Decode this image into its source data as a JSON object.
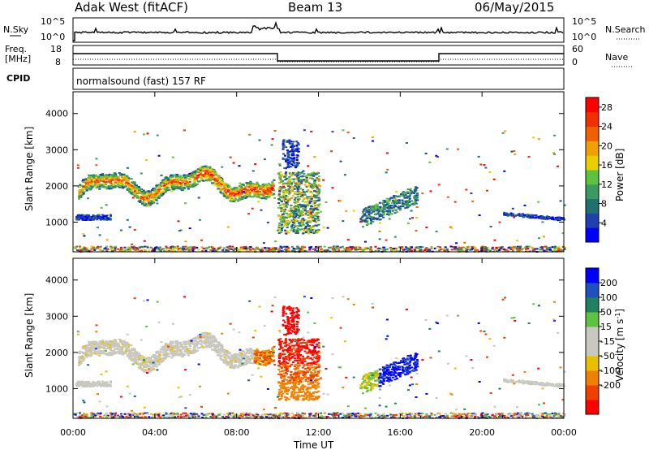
{
  "header": {
    "site": "Adak West (fitACF)",
    "beam": "Beam 13",
    "date": "06/May/2015"
  },
  "top_panel": {
    "left_label": "N.Sky",
    "right_label": "N.Search",
    "left_ticks": [
      "10^5",
      "10^0"
    ],
    "right_ticks": [
      "10^5",
      "10^0"
    ]
  },
  "freq_panel": {
    "left_label_1": "Freq.",
    "left_label_2": "[MHz]",
    "left_ticks": [
      "18",
      "8"
    ],
    "right_label": "Nave",
    "right_ticks": [
      "60",
      "0"
    ]
  },
  "cpid_panel": {
    "label": "CPID",
    "text": "normalsound (fast) 157 RF"
  },
  "colors": {
    "power": [
      "#0000ff",
      "#2040b0",
      "#207070",
      "#3a9a60",
      "#60c040",
      "#e8d000",
      "#f0a000",
      "#f06000",
      "#f03000",
      "#ff0000"
    ],
    "velocity": [
      "#ff0000",
      "#f04000",
      "#f08000",
      "#e8c000",
      "#c8c8c0",
      "#c8c8c0",
      "#60c040",
      "#208060",
      "#2050c0",
      "#0000ff"
    ]
  },
  "chart_data": [
    {
      "type": "heatmap",
      "name": "power",
      "xlabel": "",
      "ylabel": "Slant Range [km]",
      "x_ticks": [
        "00:00",
        "04:00",
        "08:00",
        "12:00",
        "16:00",
        "20:00",
        "00:00"
      ],
      "xlim": [
        0,
        24
      ],
      "ylim": [
        180,
        4600
      ],
      "y_ticks": [
        1000,
        2000,
        3000,
        4000
      ],
      "colorbar_label": "Power [dB]",
      "colorbar_ticks": [
        4,
        8,
        12,
        16,
        20,
        24,
        28
      ],
      "colorbar_range": [
        0,
        30
      ]
    },
    {
      "type": "heatmap",
      "name": "velocity",
      "xlabel": "Time UT",
      "ylabel": "Slant Range [km]",
      "x_ticks": [
        "00:00",
        "04:00",
        "08:00",
        "12:00",
        "16:00",
        "20:00",
        "00:00"
      ],
      "xlim": [
        0,
        24
      ],
      "ylim": [
        180,
        4600
      ],
      "y_ticks": [
        1000,
        2000,
        3000,
        4000
      ],
      "colorbar_label": "Velocity [m s^-1]",
      "colorbar_ticks": [
        "200",
        "100",
        "50",
        "15",
        "-15",
        "-50",
        "-100",
        "-200"
      ]
    }
  ]
}
